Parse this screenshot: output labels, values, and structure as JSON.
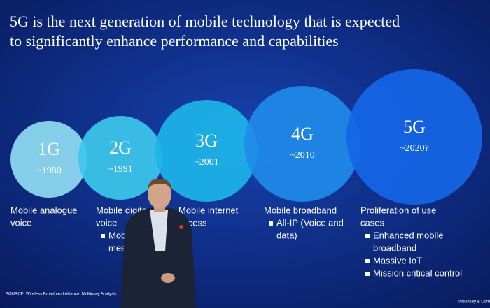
{
  "title": [
    "5G is the next generation of mobile technology that is expected",
    "to significantly enhance performance and capabilities"
  ],
  "generations": [
    {
      "name": "1G",
      "year": "~1980",
      "description": [
        "Mobile analogue",
        "voice"
      ]
    },
    {
      "name": "2G",
      "year": "~1991",
      "description": [
        "Mobile digita",
        "voice"
      ],
      "bullets": [
        [
          "Mobi",
          "mes"
        ]
      ]
    },
    {
      "name": "3G",
      "year": "~2001",
      "description": [
        "Mobile internet",
        "access"
      ]
    },
    {
      "name": "4G",
      "year": "~2010",
      "description": [
        "Mobile broadband"
      ],
      "bullets": [
        [
          "All-IP (Voice and",
          "data)"
        ]
      ]
    },
    {
      "name": "5G",
      "year": "~2020?",
      "description": [
        "Proliferation of use",
        "cases"
      ],
      "bullets": [
        [
          "Enhanced mobile",
          "broadband"
        ],
        [
          "Massive IoT"
        ],
        [
          "Mission critical control"
        ]
      ]
    }
  ],
  "source": "SOURCE: Wireless Broadband Alliance; McKinsey Analysis",
  "footer": "McKinsey & Com"
}
